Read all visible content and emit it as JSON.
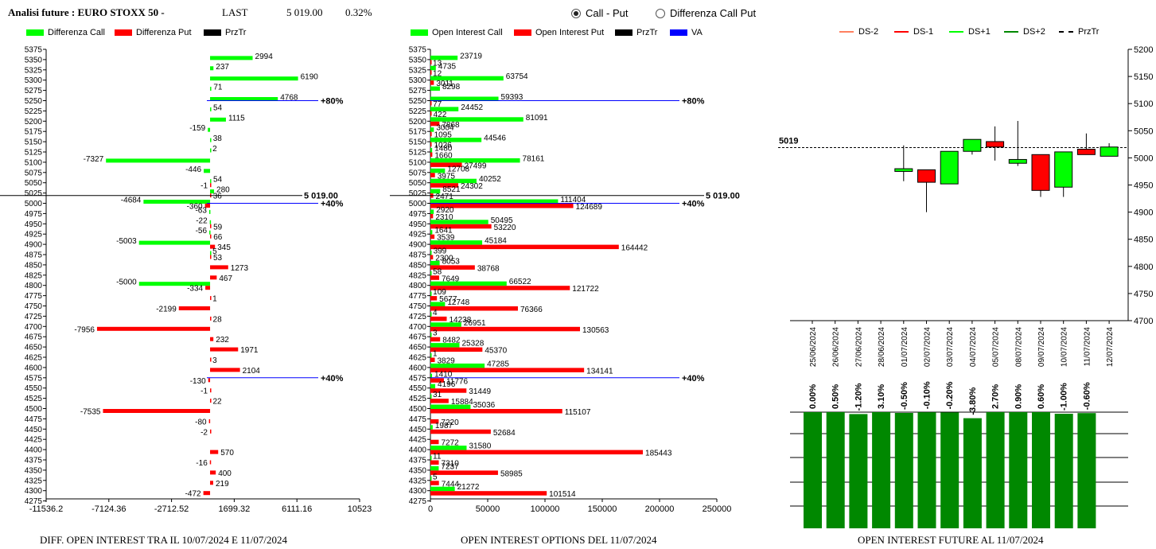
{
  "header": {
    "title": "Analisi future : EURO STOXX 50 -",
    "last_label": "LAST",
    "last_value": "5 019.00",
    "change": "0.32%"
  },
  "toggle": {
    "option1": "Call - Put",
    "option2": "Differenza Call Put",
    "selected": "Call - Put"
  },
  "colors": {
    "green": "#00ff00",
    "red": "#ff0000",
    "darkgreen": "#008800",
    "blue": "#0000ff",
    "salmon": "#ff8060"
  },
  "panel1": {
    "legend": [
      "Differenza Call",
      "Differenza Put",
      "PrzTr"
    ],
    "footer": "DIFF. OPEN INTEREST TRA IL 10/07/2024 E 11/07/2024"
  },
  "panel2": {
    "legend": [
      "Open Interest Call",
      "Open Interest Put",
      "PrzTr",
      "VA"
    ],
    "footer": "OPEN INTEREST OPTIONS DEL 11/07/2024"
  },
  "panel3": {
    "legend": [
      "DS-2",
      "DS-1",
      "DS+1",
      "DS+2",
      "PrzTr"
    ],
    "footer": "OPEN INTEREST FUTURE AL 11/07/2024"
  },
  "chart_data": [
    {
      "type": "bar",
      "orientation": "horizontal",
      "strikes": [
        5375,
        5350,
        5325,
        5300,
        5275,
        5250,
        5225,
        5200,
        5175,
        5150,
        5125,
        5100,
        5075,
        5050,
        5025,
        5000,
        4975,
        4950,
        4925,
        4900,
        4875,
        4850,
        4825,
        4800,
        4775,
        4750,
        4725,
        4700,
        4675,
        4650,
        4625,
        4600,
        4575,
        4550,
        4525,
        4500,
        4475,
        4450,
        4425,
        4400,
        4375,
        4350,
        4325,
        4300,
        4275
      ],
      "call_diff": [
        null,
        2994,
        237,
        6190,
        71,
        4768,
        54,
        1115,
        -159,
        38,
        2,
        -7327,
        -446,
        54,
        280,
        -4684,
        -63,
        -22,
        -56,
        -5003,
        5,
        null,
        null,
        -5000,
        null,
        null,
        null,
        null,
        null,
        null,
        null,
        null,
        null,
        null,
        null,
        null,
        null,
        null,
        null,
        null,
        null,
        null,
        null,
        null,
        null
      ],
      "put_diff": [
        null,
        null,
        null,
        null,
        null,
        null,
        null,
        null,
        null,
        null,
        null,
        null,
        null,
        -1,
        36,
        -360,
        null,
        59,
        66,
        345,
        53,
        1273,
        467,
        -334,
        1,
        -2199,
        28,
        -7956,
        232,
        1971,
        3,
        2104,
        -130,
        -1,
        22,
        -7535,
        -80,
        -2,
        null,
        570,
        -16,
        400,
        219,
        -472,
        null
      ],
      "xticks": [
        "-11536.2",
        "-7124.36",
        "-2712.52",
        "1699.32",
        "6111.16",
        "10523"
      ],
      "xlim": [
        -11536.2,
        10523
      ],
      "przTr": "5 019.00",
      "markers": [
        {
          "strike": 5250,
          "label": "80%"
        },
        {
          "strike": 5000,
          "label": "40%"
        },
        {
          "strike": 4575,
          "label": "40%"
        }
      ]
    },
    {
      "type": "bar",
      "orientation": "horizontal",
      "strikes": [
        5375,
        5350,
        5325,
        5300,
        5275,
        5250,
        5225,
        5200,
        5175,
        5150,
        5125,
        5100,
        5075,
        5050,
        5025,
        5000,
        4975,
        4950,
        4925,
        4900,
        4875,
        4850,
        4825,
        4800,
        4775,
        4750,
        4725,
        4700,
        4675,
        4650,
        4625,
        4600,
        4575,
        4550,
        4525,
        4500,
        4475,
        4450,
        4425,
        4400,
        4375,
        4350,
        4325,
        4300,
        4275
      ],
      "call_oi": [
        null,
        23719,
        4735,
        63754,
        8298,
        59393,
        24452,
        81091,
        3004,
        44546,
        1480,
        78161,
        12708,
        40252,
        8521,
        111404,
        2920,
        50495,
        1641,
        45184,
        399,
        8053,
        58,
        66522,
        109,
        12748,
        4,
        26951,
        3,
        25328,
        1,
        47285,
        1410,
        4196,
        31,
        35036,
        null,
        1987,
        null,
        31580,
        11,
        7237,
        5,
        21272,
        null
      ],
      "put_oi": [
        null,
        13,
        12,
        3011,
        null,
        77,
        422,
        7868,
        1095,
        1026,
        1660,
        27499,
        3975,
        24302,
        2471,
        124689,
        2310,
        53220,
        3539,
        164442,
        2300,
        38768,
        7649,
        121722,
        5677,
        76366,
        14238,
        130563,
        8482,
        45370,
        3829,
        134141,
        11776,
        31449,
        15884,
        115107,
        7220,
        52684,
        7272,
        185443,
        7310,
        58985,
        7444,
        101514,
        null
      ],
      "xticks": [
        "0",
        "50000",
        "100000",
        "150000",
        "200000",
        "250000"
      ],
      "xlim": [
        0,
        250000
      ],
      "przTr": "5 019.00",
      "markers": [
        {
          "strike": 5250,
          "label": "80%"
        },
        {
          "strike": 5000,
          "label": "40%"
        },
        {
          "strike": 4575,
          "label": "40%"
        }
      ]
    },
    {
      "type": "candlestick",
      "dates": [
        "25/06/2024",
        "26/06/2024",
        "27/06/2024",
        "28/06/2024",
        "01/07/2024",
        "02/07/2024",
        "03/07/2024",
        "04/07/2024",
        "05/07/2024",
        "08/07/2024",
        "09/07/2024",
        "10/07/2024",
        "11/07/2024",
        "12/07/2024"
      ],
      "candles": [
        null,
        null,
        null,
        null,
        {
          "o": 4975,
          "c": 4980,
          "h": 5023,
          "l": 4957
        },
        {
          "o": 4978,
          "c": 4955,
          "h": 4978,
          "l": 4900
        },
        {
          "o": 4952,
          "c": 5012,
          "h": 5012,
          "l": 4952
        },
        {
          "o": 5012,
          "c": 5034,
          "h": 5034,
          "l": 5006
        },
        {
          "o": 5030,
          "c": 5020,
          "h": 5058,
          "l": 4995
        },
        {
          "o": 4990,
          "c": 4997,
          "h": 5068,
          "l": 4985
        },
        {
          "o": 5006,
          "c": 4940,
          "h": 5006,
          "l": 4928
        },
        {
          "o": 4946,
          "c": 5011,
          "h": 5011,
          "l": 4928
        },
        {
          "o": 5016,
          "c": 5006,
          "h": 5045,
          "l": 5006
        },
        {
          "o": 5003,
          "c": 5020,
          "h": 5027,
          "l": 5003
        }
      ],
      "candle_colors": [
        null,
        null,
        null,
        null,
        "green",
        "red",
        "green",
        "green",
        "red",
        "green",
        "red",
        "green",
        "red",
        "green"
      ],
      "yticks": [
        "5200",
        "5150",
        "5100",
        "5050",
        "5000",
        "4950",
        "4900",
        "4850",
        "4800",
        "4750",
        "4700"
      ],
      "ylim": [
        4700,
        5200
      ],
      "last": "5019"
    },
    {
      "type": "bar",
      "categories": [
        "25/06/2024",
        "26/06/2024",
        "27/06/2024",
        "28/06/2024",
        "01/07/2024",
        "02/07/2024",
        "03/07/2024",
        "04/07/2024",
        "05/07/2024",
        "08/07/2024",
        "09/07/2024",
        "10/07/2024",
        "11/07/2024",
        "12/07/2024"
      ],
      "labels": [
        "0.00%",
        "0.50%",
        "-1.20%",
        "3.10%",
        "-0.50%",
        "-0.10%",
        "-0.20%",
        "-3.80%",
        "2.70%",
        "0.90%",
        "0.60%",
        "-1.00%",
        "-0.60%",
        ""
      ],
      "values": [
        0.0,
        0.5,
        -1.2,
        3.1,
        -0.5,
        -0.1,
        -0.2,
        -3.8,
        2.7,
        0.9,
        0.6,
        -1.0,
        -0.6,
        null
      ]
    }
  ]
}
